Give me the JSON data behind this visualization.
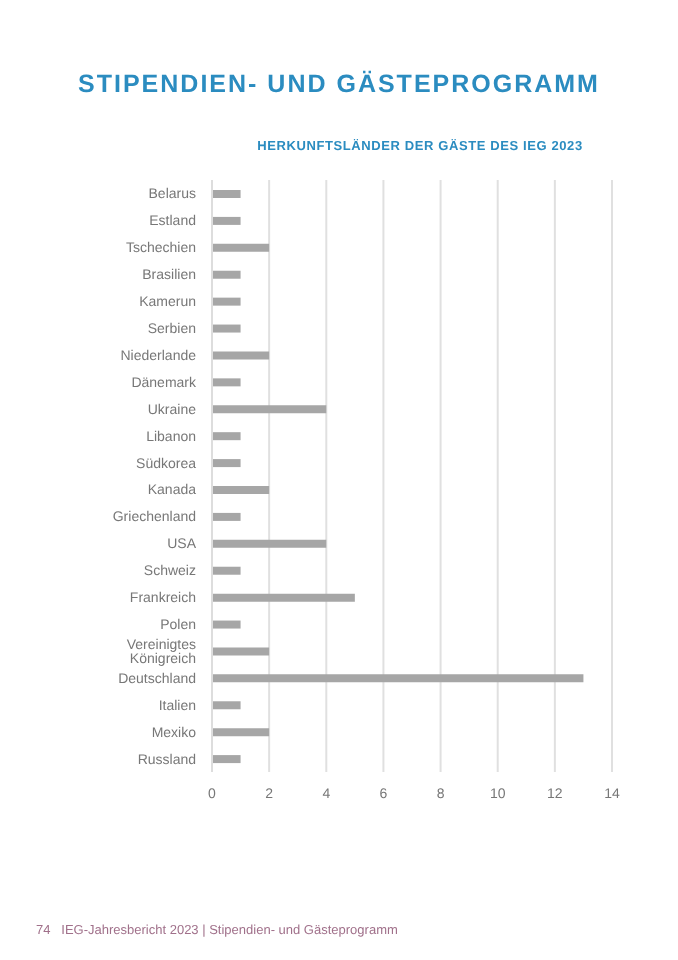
{
  "chart_data": {
    "type": "bar",
    "orientation": "horizontal",
    "title": "STIPENDIEN- UND GÄSTEPROGRAMM",
    "subtitle": "HERKUNFTSLÄNDER DER GÄSTE DES IEG 2023",
    "categories": [
      "Belarus",
      "Estland",
      "Tschechien",
      "Brasilien",
      "Kamerun",
      "Serbien",
      "Niederlande",
      "Dänemark",
      "Ukraine",
      "Libanon",
      "Südkorea",
      "Kanada",
      "Griechenland",
      "USA",
      "Schweiz",
      "Frankreich",
      "Polen",
      "Vereinigtes Königreich",
      "Deutschland",
      "Italien",
      "Mexiko",
      "Russland"
    ],
    "values": [
      1,
      1,
      2,
      1,
      1,
      1,
      2,
      1,
      4,
      1,
      1,
      2,
      1,
      4,
      1,
      5,
      1,
      2,
      13,
      1,
      2,
      1
    ],
    "color": "#a6a6a6",
    "xlim": [
      0,
      14
    ],
    "xticks": [
      0,
      2,
      4,
      6,
      8,
      10,
      12,
      14
    ],
    "grid": "x",
    "annotations": [
      "74   IEG-Jahresbericht 2023 | Stipendien- und Gästeprogramm"
    ]
  }
}
